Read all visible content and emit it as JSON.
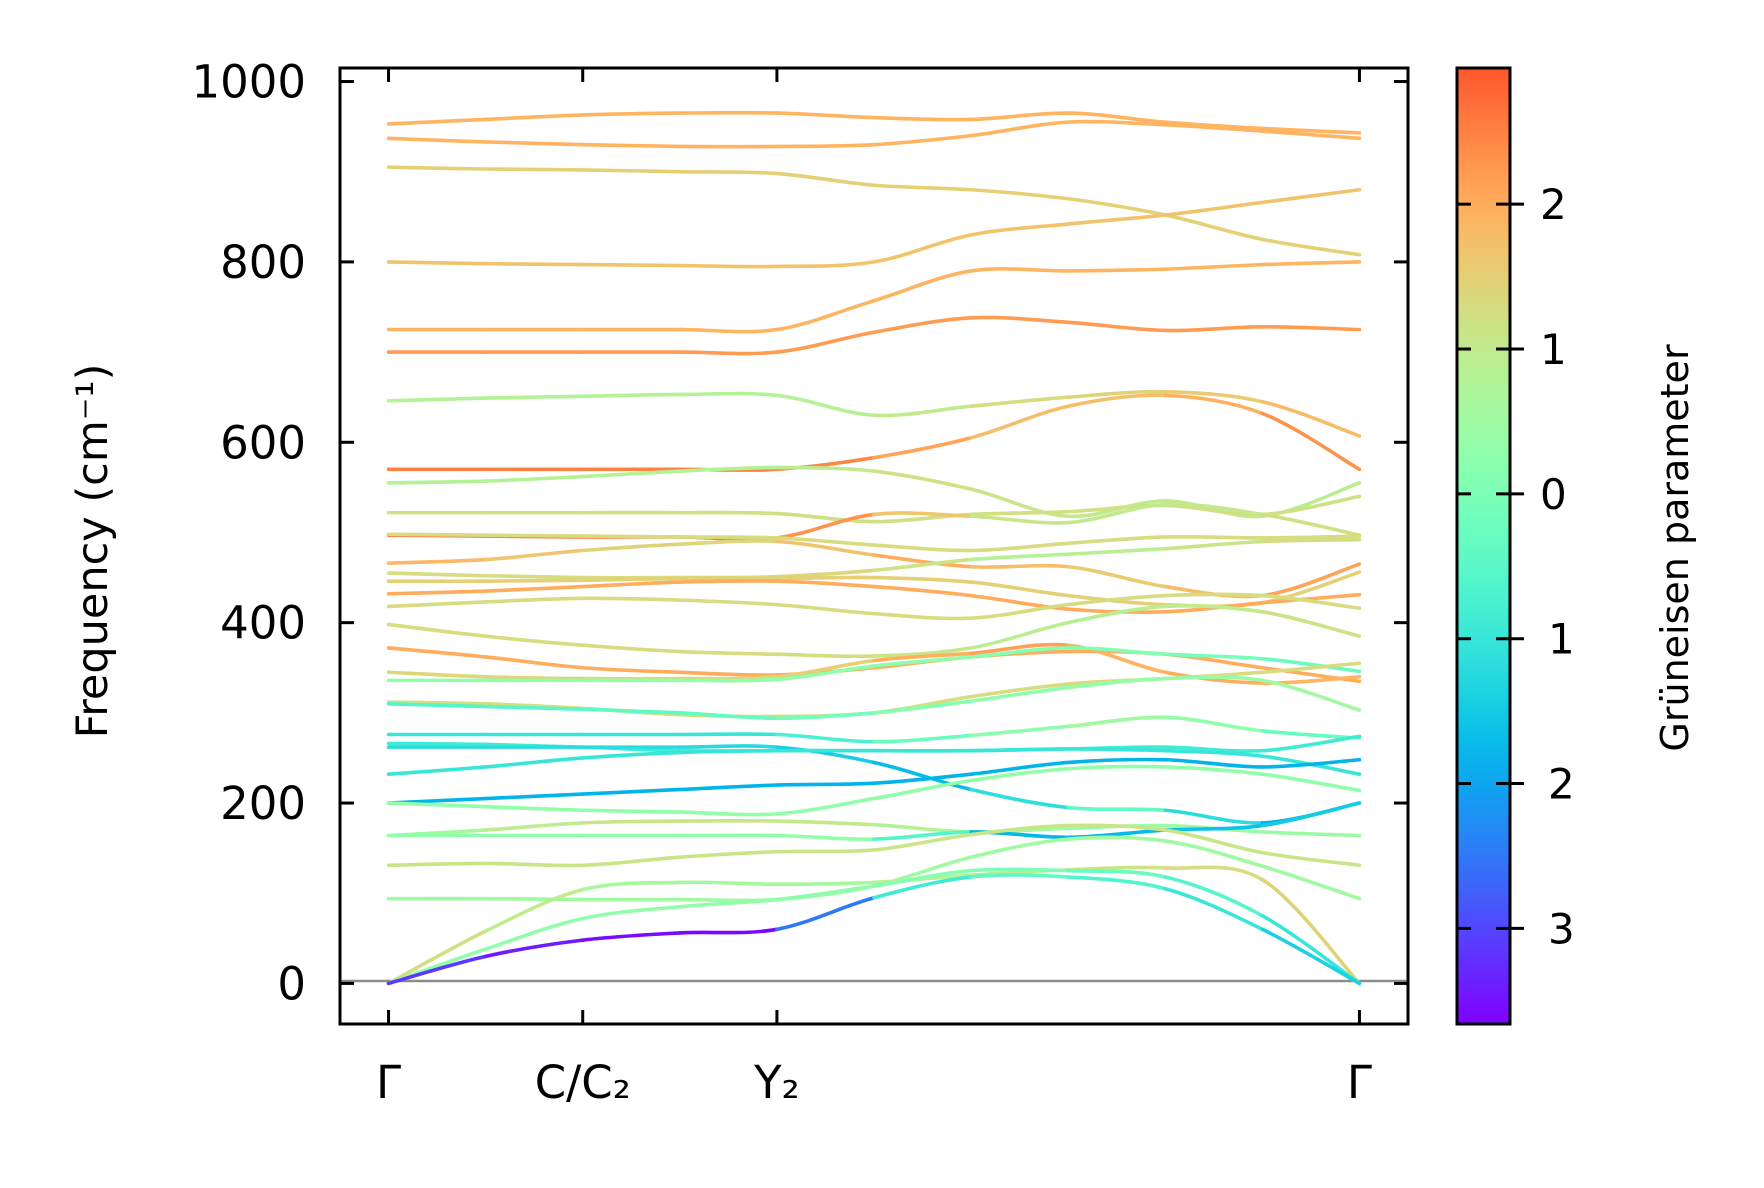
{
  "chart_data": {
    "type": "line",
    "title": "",
    "ylabel": "Frequency (cm⁻¹)",
    "xlabel": "",
    "ylim": [
      -45,
      1015
    ],
    "xlim": [
      -0.25,
      5.25
    ],
    "yticks": [
      0,
      200,
      400,
      600,
      800,
      1000
    ],
    "xticks": [
      {
        "pos": 0,
        "label": "Γ"
      },
      {
        "pos": 1,
        "label": "C/C₂"
      },
      {
        "pos": 2,
        "label": "Y₂"
      },
      {
        "pos": 5,
        "label": "Γ"
      }
    ],
    "grid": false,
    "zero_line": true,
    "x": [
      0,
      0.5,
      1,
      1.5,
      2,
      2.5,
      3,
      3.5,
      4,
      4.5,
      5
    ],
    "colorbar": {
      "label": "Grüneisen parameter",
      "colormap": "rainbow",
      "norm_range": [
        -3.66,
        3.75
      ],
      "range": [
        -3.66,
        2.94
      ],
      "ticks": [
        2,
        1,
        0,
        -1,
        -2,
        -3
      ],
      "tick_labels": [
        "2",
        "1",
        "0",
        "−1",
        "−2",
        "−3"
      ]
    },
    "series": [
      {
        "name": "band-1",
        "freq": [
          953,
          958,
          963,
          965,
          965,
          960,
          958,
          965,
          955,
          948,
          943
        ],
        "gamma": 1.9
      },
      {
        "name": "band-2",
        "freq": [
          937,
          933,
          930,
          928,
          928,
          930,
          940,
          955,
          952,
          945,
          937
        ],
        "gamma": 1.9
      },
      {
        "name": "band-3",
        "freq": [
          905,
          903,
          902,
          900,
          898,
          885,
          880,
          870,
          852,
          825,
          808
        ],
        "gamma": 1.5
      },
      {
        "name": "band-4",
        "freq": [
          800,
          798,
          797,
          796,
          795,
          800,
          830,
          842,
          852,
          866,
          880
        ],
        "gamma": 1.7
      },
      {
        "name": "band-5",
        "freq": [
          725,
          725,
          725,
          725,
          725,
          757,
          790,
          790,
          792,
          797,
          800
        ],
        "gamma": 1.9
      },
      {
        "name": "band-6",
        "freq": [
          700,
          700,
          700,
          700,
          700,
          722,
          738,
          733,
          724,
          728,
          725
        ],
        "gamma": 2.2
      },
      {
        "name": "band-7",
        "freq": [
          646,
          649,
          651,
          653,
          652,
          630,
          640,
          650,
          656,
          645,
          607
        ],
        "gamma": [
          0.8,
          0.8,
          0.8,
          0.8,
          0.8,
          0.8,
          1.2,
          1.4,
          1.5,
          1.7,
          1.9
        ]
      },
      {
        "name": "band-8",
        "freq": [
          570,
          570,
          570,
          570,
          570,
          583,
          605,
          640,
          652,
          632,
          570
        ],
        "gamma": [
          2.5,
          2.5,
          2.5,
          2.5,
          2.5,
          2.4,
          1.8,
          1.7,
          1.8,
          2.1,
          2.5
        ]
      },
      {
        "name": "band-9",
        "freq": [
          555,
          557,
          562,
          568,
          572,
          568,
          548,
          518,
          535,
          518,
          555
        ],
        "gamma": [
          0.8,
          0.8,
          0.8,
          0.8,
          0.8,
          1.2,
          1.2,
          1.0,
          1.0,
          1.0,
          0.8
        ]
      },
      {
        "name": "band-10",
        "freq": [
          522,
          522,
          522,
          522,
          521,
          512,
          520,
          523,
          530,
          520,
          540
        ],
        "gamma": 1.2
      },
      {
        "name": "band-11",
        "freq": [
          497,
          496,
          495,
          495,
          494,
          520,
          518,
          511,
          531,
          520,
          497
        ],
        "gamma": [
          2.6,
          2.6,
          2.6,
          2.6,
          2.5,
          2.1,
          1.2,
          1.0,
          1.0,
          1.1,
          1.3
        ]
      },
      {
        "name": "band-12",
        "freq": [
          498,
          497,
          496,
          495,
          494,
          486,
          480,
          488,
          495,
          494,
          496
        ],
        "gamma": 1.3
      },
      {
        "name": "band-13",
        "freq": [
          466,
          470,
          480,
          487,
          490,
          475,
          462,
          462,
          440,
          430,
          465
        ],
        "gamma": [
          1.9,
          1.8,
          1.5,
          1.4,
          1.4,
          2.0,
          2.0,
          1.6,
          1.6,
          2.0,
          2.2
        ]
      },
      {
        "name": "band-14",
        "freq": [
          455,
          452,
          450,
          450,
          451,
          458,
          470,
          476,
          482,
          490,
          492
        ],
        "gamma": [
          1.3,
          1.3,
          1.3,
          1.3,
          1.3,
          1.5,
          0.8,
          0.8,
          1.0,
          1.2,
          1.3
        ]
      },
      {
        "name": "band-15",
        "freq": [
          446,
          446,
          447,
          449,
          449,
          450,
          445,
          430,
          420,
          422,
          456
        ],
        "gamma": 1.5
      },
      {
        "name": "band-16",
        "freq": [
          432,
          435,
          440,
          445,
          446,
          440,
          430,
          415,
          412,
          422,
          431
        ],
        "gamma": 2.0
      },
      {
        "name": "band-17",
        "freq": [
          418,
          423,
          427,
          425,
          420,
          410,
          405,
          420,
          430,
          430,
          416
        ],
        "gamma": 1.3
      },
      {
        "name": "band-18",
        "freq": [
          398,
          385,
          375,
          368,
          365,
          363,
          372,
          400,
          418,
          412,
          385
        ],
        "gamma": [
          1.3,
          1.3,
          1.3,
          1.3,
          1.3,
          1.2,
          1.0,
          0.8,
          0.9,
          1.0,
          1.3
        ]
      },
      {
        "name": "band-19",
        "freq": [
          372,
          362,
          350,
          345,
          342,
          350,
          362,
          368,
          365,
          350,
          335
        ],
        "gamma": 2.0
      },
      {
        "name": "band-20",
        "freq": [
          345,
          340,
          338,
          338,
          340,
          358,
          366,
          375,
          345,
          333,
          340
        ],
        "gamma": [
          1.4,
          1.4,
          1.4,
          1.4,
          1.4,
          1.6,
          2.3,
          2.0,
          1.8,
          2.2,
          1.6
        ]
      },
      {
        "name": "band-21",
        "freq": [
          336,
          336,
          336,
          336,
          337,
          352,
          362,
          372,
          365,
          360,
          346
        ],
        "gamma": [
          0.3,
          0.3,
          0.3,
          0.3,
          0.3,
          0.3,
          0.2,
          0.1,
          0.0,
          -0.2,
          -0.4
        ]
      },
      {
        "name": "band-22",
        "freq": [
          312,
          310,
          305,
          298,
          296,
          300,
          318,
          332,
          338,
          345,
          355
        ],
        "gamma": 1.3
      },
      {
        "name": "band-23",
        "freq": [
          310,
          307,
          304,
          300,
          294,
          300,
          313,
          328,
          338,
          336,
          303
        ],
        "gamma": [
          -0.6,
          -0.6,
          -0.5,
          -0.4,
          -0.3,
          0.0,
          0.2,
          0.3,
          0.4,
          0.5,
          0.6
        ]
      },
      {
        "name": "band-24",
        "freq": [
          276,
          276,
          276,
          276,
          276,
          268,
          275,
          285,
          295,
          280,
          272
        ],
        "gamma": [
          -1.0,
          -1.0,
          -1.0,
          -1.0,
          -1.0,
          -0.5,
          0.0,
          0.4,
          0.6,
          0.0,
          -0.6
        ]
      },
      {
        "name": "band-25",
        "freq": [
          266,
          265,
          262,
          258,
          258,
          258,
          258,
          260,
          262,
          258,
          274
        ],
        "gamma": -0.9
      },
      {
        "name": "band-26",
        "freq": [
          262,
          262,
          262,
          262,
          262,
          245,
          215,
          195,
          192,
          178,
          200
        ],
        "gamma": [
          -1.2,
          -1.2,
          -1.2,
          -1.2,
          -1.3,
          -1.6,
          -1.8,
          -0.5,
          -0.2,
          -2.2,
          -1.5
        ]
      },
      {
        "name": "band-27",
        "freq": [
          232,
          240,
          250,
          256,
          258,
          258,
          258,
          260,
          258,
          252,
          232
        ],
        "gamma": -1.0
      },
      {
        "name": "band-28",
        "freq": [
          200,
          205,
          210,
          215,
          220,
          222,
          232,
          245,
          248,
          240,
          248
        ],
        "gamma": -1.8
      },
      {
        "name": "band-29",
        "freq": [
          200,
          196,
          192,
          190,
          188,
          205,
          225,
          238,
          240,
          232,
          214
        ],
        "gamma": 0.3
      },
      {
        "name": "band-30",
        "freq": [
          164,
          170,
          178,
          180,
          180,
          176,
          168,
          172,
          175,
          168,
          164
        ],
        "gamma": [
          0.4,
          0.8,
          1.1,
          1.1,
          1.1,
          1.0,
          0.6,
          0.4,
          0.4,
          0.5,
          0.4
        ]
      },
      {
        "name": "band-31",
        "freq": [
          164,
          164,
          164,
          164,
          164,
          160,
          168,
          162,
          170,
          175,
          200
        ],
        "gamma": [
          0.3,
          0.3,
          0.3,
          0.3,
          0.3,
          0.3,
          -1.5,
          -2.0,
          -1.5,
          -1.7,
          -1.3
        ]
      },
      {
        "name": "band-32",
        "freq": [
          131,
          133,
          131,
          140,
          146,
          148,
          165,
          175,
          170,
          145,
          131
        ],
        "gamma": 1.1
      },
      {
        "name": "band-33",
        "freq": [
          94,
          94,
          93,
          93,
          93,
          108,
          140,
          160,
          158,
          130,
          94
        ],
        "gamma": 0.5
      },
      {
        "name": "band-34",
        "freq": [
          0,
          58,
          104,
          112,
          110,
          112,
          120,
          126,
          128,
          115,
          0
        ],
        "gamma": [
          1.3,
          1.2,
          0.7,
          0.6,
          0.6,
          0.6,
          1.0,
          1.1,
          1.2,
          1.4,
          1.5
        ]
      },
      {
        "name": "band-35",
        "freq": [
          0,
          38,
          72,
          85,
          93,
          108,
          125,
          125,
          118,
          75,
          0
        ],
        "gamma": [
          0.3,
          0.3,
          0.3,
          0.3,
          0.3,
          0.2,
          0.1,
          -0.2,
          -0.4,
          -0.8,
          -1.2
        ]
      },
      {
        "name": "band-36",
        "freq": [
          0,
          30,
          48,
          56,
          60,
          95,
          118,
          118,
          105,
          60,
          0
        ],
        "gamma": [
          -3.0,
          -3.3,
          -3.5,
          -3.6,
          -3.6,
          -1.4,
          -0.4,
          -0.5,
          -0.8,
          -1.2,
          -1.6
        ]
      }
    ]
  }
}
